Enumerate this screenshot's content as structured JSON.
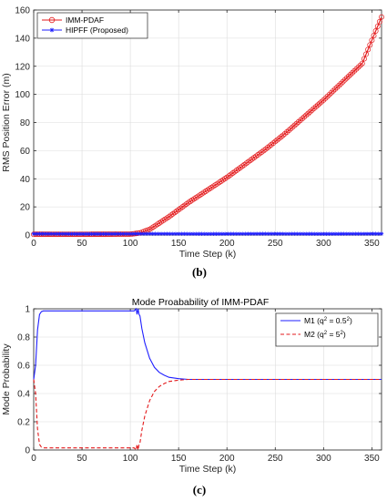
{
  "chart_data": [
    {
      "type": "line",
      "panel_label": "(b)",
      "title": "",
      "xlabel": "Time Step (k)",
      "ylabel": "RMS Position Error (m)",
      "xlim": [
        0,
        360
      ],
      "ylim": [
        0,
        160
      ],
      "xticks": [
        "0",
        "50",
        "100",
        "150",
        "200",
        "250",
        "300",
        "350"
      ],
      "yticks": [
        "0",
        "20",
        "40",
        "60",
        "80",
        "100",
        "120",
        "140",
        "160"
      ],
      "grid": true,
      "legend": "top-left",
      "series": [
        {
          "name": "IMM-PDAF",
          "color": "#e31a1c",
          "marker": "circle",
          "x": [
            0,
            100,
            110,
            120,
            140,
            160,
            180,
            200,
            220,
            240,
            260,
            280,
            300,
            320,
            340,
            360
          ],
          "y": [
            0.5,
            0.6,
            1.5,
            4,
            13,
            23,
            32,
            41,
            51,
            61,
            72,
            84,
            96,
            109,
            122,
            155
          ]
        },
        {
          "name": "HIPFF (Proposed)",
          "color": "#1f1fff",
          "marker": "asterisk",
          "x": [
            0,
            60,
            120,
            180,
            240,
            300,
            360
          ],
          "y": [
            0.9,
            0.8,
            0.9,
            0.8,
            0.9,
            0.8,
            0.9
          ]
        }
      ]
    },
    {
      "type": "line",
      "panel_label": "(c)",
      "title": "Mode Proabability of IMM-PDAF",
      "xlabel": "Time Step (k)",
      "ylabel": "Mode Probability",
      "xlim": [
        0,
        360
      ],
      "ylim": [
        0,
        1
      ],
      "xticks": [
        "0",
        "50",
        "100",
        "150",
        "200",
        "250",
        "300",
        "350"
      ],
      "yticks": [
        "0",
        "0.2",
        "0.4",
        "0.6",
        "0.8",
        "1"
      ],
      "grid": true,
      "legend": "top-right",
      "series": [
        {
          "name": "M1 (q² = 0.5²)",
          "name_parts": {
            "base": "M1 (q",
            "sup1": "2",
            "mid": " = 0.5",
            "sup2": "2",
            "end": ")"
          },
          "color": "#1f1fff",
          "dash": "solid",
          "x": [
            0,
            2,
            4,
            6,
            8,
            10,
            20,
            40,
            60,
            80,
            100,
            104,
            106,
            107,
            108,
            109,
            110,
            112,
            115,
            120,
            125,
            130,
            135,
            140,
            150,
            160,
            170,
            180,
            200,
            250,
            300,
            360
          ],
          "y": [
            0.5,
            0.6,
            0.85,
            0.96,
            0.98,
            0.985,
            0.985,
            0.985,
            0.985,
            0.985,
            0.985,
            0.985,
            1.0,
            0.96,
            1.0,
            0.96,
            0.95,
            0.86,
            0.76,
            0.65,
            0.585,
            0.55,
            0.53,
            0.515,
            0.505,
            0.5,
            0.5,
            0.5,
            0.5,
            0.5,
            0.5,
            0.5
          ]
        },
        {
          "name": "M2 (q² = 5²)",
          "name_parts": {
            "base": "M2 (q",
            "sup1": "2",
            "mid": " = 5",
            "sup2": "2",
            "end": ")"
          },
          "color": "#e31a1c",
          "dash": "dashed",
          "x": [
            0,
            2,
            4,
            6,
            8,
            10,
            20,
            40,
            60,
            80,
            100,
            104,
            106,
            107,
            108,
            109,
            110,
            112,
            115,
            120,
            125,
            130,
            135,
            140,
            150,
            160,
            170,
            180,
            200,
            250,
            300,
            360
          ],
          "y": [
            0.5,
            0.4,
            0.15,
            0.04,
            0.02,
            0.015,
            0.015,
            0.015,
            0.015,
            0.015,
            0.015,
            0.015,
            0.0,
            0.04,
            0.0,
            0.04,
            0.05,
            0.14,
            0.24,
            0.35,
            0.415,
            0.45,
            0.47,
            0.485,
            0.495,
            0.5,
            0.5,
            0.5,
            0.5,
            0.5,
            0.5,
            0.5
          ]
        }
      ]
    }
  ]
}
